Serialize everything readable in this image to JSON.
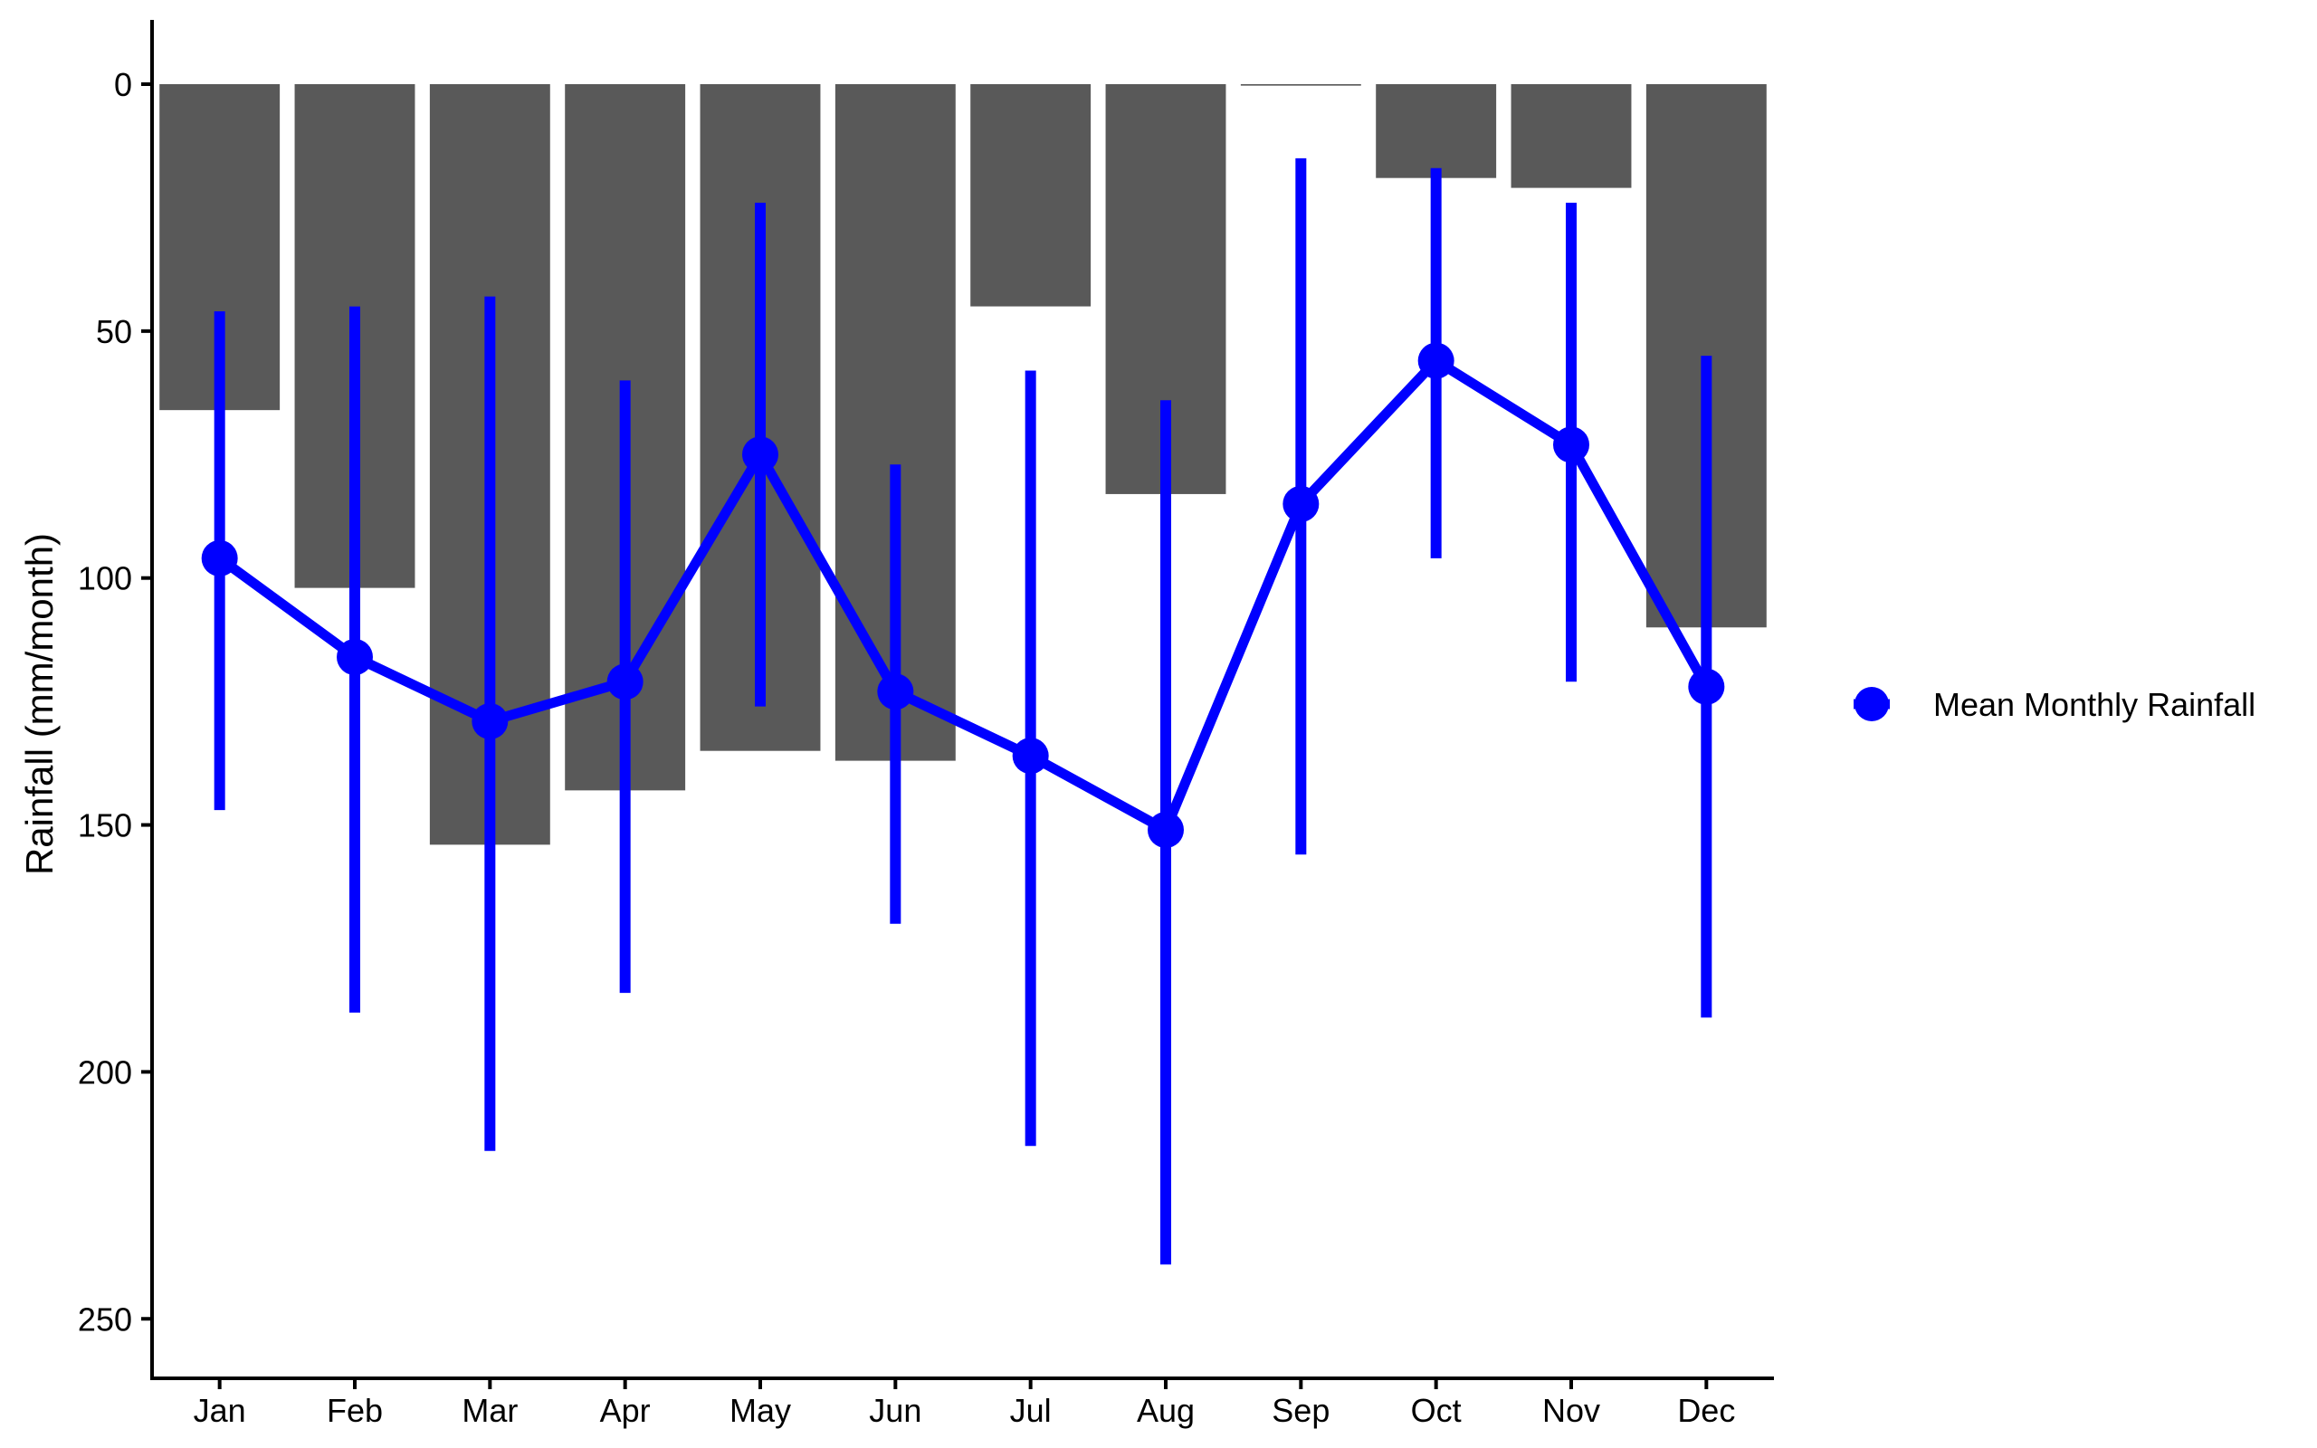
{
  "chart_data": {
    "type": "bar",
    "categories": [
      "Jan",
      "Feb",
      "Mar",
      "Apr",
      "May",
      "Jun",
      "Jul",
      "Aug",
      "Sep",
      "Oct",
      "Nov",
      "Dec"
    ],
    "bar_series": {
      "values": [
        66,
        102,
        154,
        143,
        135,
        137,
        45,
        83,
        0.3,
        19,
        21,
        110
      ],
      "color": "#595959"
    },
    "line_series": {
      "name": "Mean Monthly Rainfall",
      "type": "line",
      "color": "#0000ff",
      "values": [
        96,
        116,
        129,
        121,
        75,
        123,
        136,
        151,
        85,
        56,
        73,
        122
      ],
      "error_low": [
        46,
        45,
        43,
        60,
        24,
        77,
        58,
        64,
        15,
        17,
        24,
        55
      ],
      "error_high": [
        147,
        188,
        216,
        184,
        126,
        170,
        215,
        239,
        156,
        96,
        121,
        189
      ]
    },
    "xlabel": "",
    "ylabel": "Rainfall (mm/month)",
    "ylim": [
      0,
      262
    ],
    "y_reversed": true,
    "y_ticks": [
      0,
      50,
      100,
      150,
      200,
      250
    ],
    "grid": false,
    "legend_position": "right"
  }
}
